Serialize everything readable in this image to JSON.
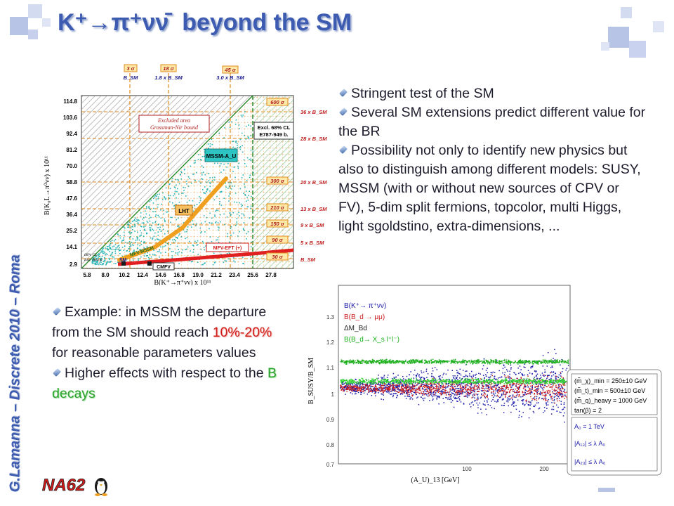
{
  "title": {
    "main": "K⁺→π⁺νν̄",
    "rest": "beyond the SM"
  },
  "side_label": "G.Lamanna – Discrete 2010 – Roma",
  "right_bullets": [
    "Stringent test of the SM",
    "Several SM extensions predict different value for the BR",
    "Possibility not only to identify new physics but also to distinguish among different models: SUSY, MSSM (with or without new sources of CPV or FV), 5-dim split fermions, topcolor, multi Higgs, light sgoldstino, extra-dimensions, ..."
  ],
  "left_bullets": {
    "b1_pre": "Example: in MSSM the departure from the SM should reach",
    "b1_hl": "10%-20%",
    "b1_post": "for reasonable parameters values",
    "b2_pre": "Higher effects with respect to the",
    "b2_hl": "B decays"
  },
  "logo": "NA62",
  "colors": {
    "title_blue": "#3d5bb0",
    "highlight_red": "#d0201a",
    "highlight_green": "#2aa22a",
    "square_blue": "#b8c4e6"
  },
  "plot1": {
    "ylabel": "B(K₀L→π⁰νν) x 10¹¹",
    "xlabel": "B(K⁺→π⁺νν) x 10¹¹",
    "y_ticks": [
      "114.8",
      "103.6",
      "92.4",
      "81.2",
      "70.0",
      "58.8",
      "47.6",
      "36.4",
      "25.2",
      "14.1",
      "2.9"
    ],
    "x_ticks": [
      "5.8",
      "8.0",
      "10.2",
      "12.4",
      "14.6",
      "16.8",
      "19.0",
      "21.2",
      "23.4",
      "25.6",
      "27.8"
    ],
    "top_labels": [
      {
        "sigma": "3 σ",
        "bsm": "B_SM"
      },
      {
        "sigma": "18 σ",
        "bsm": "1.8 x B_SM"
      },
      {
        "sigma": "45 σ",
        "bsm": "3.0 x B_SM"
      }
    ],
    "right_labels": [
      {
        "sigma": "600 σ",
        "bsm": "36 x B_SM"
      },
      {
        "sigma": "",
        "bsm": "28 x B_SM"
      },
      {
        "sigma": "300 σ",
        "bsm": "20 x B_SM"
      },
      {
        "sigma": "210 σ",
        "bsm": "13 x B_SM"
      },
      {
        "sigma": "150 σ",
        "bsm": "9 x B_SM"
      },
      {
        "sigma": "90 σ",
        "bsm": "5 x B_SM"
      },
      {
        "sigma": "30 σ",
        "bsm": "B_SM"
      }
    ],
    "excluded_area": [
      "Excluded area",
      "Grossman-Nir bound"
    ],
    "excl_box": [
      "Excl. 68% CL",
      "E787-949 b."
    ],
    "models": [
      "MSSM-A_U",
      "LHT",
      "MFV-EFT (+)",
      "SM",
      "MFV-MSSM",
      "CMFV"
    ],
    "corner_note": [
      "68% CL",
      "Exp. Bound"
    ]
  },
  "plot2": {
    "ylabel": "B_SUSY/B_SM",
    "xlabel": "(A_U)_13 [GeV]",
    "y_ticks": [
      "1.3",
      "1.2",
      "1.1",
      "1",
      "0.9",
      "0.8",
      "0.7"
    ],
    "x_ticks": [
      "100",
      "200"
    ],
    "legend": [
      {
        "label": "B(K⁺→ π⁺νν)",
        "color": "#1a1aa8"
      },
      {
        "label": "B(B_d → μμ)",
        "color": "#d02020"
      },
      {
        "label": "ΔM_Bd",
        "color": "#1a1a1a"
      },
      {
        "label": "B(B_d→ X_s l⁺l⁻)",
        "color": "#20b020"
      }
    ],
    "params_box": [
      "(m̃_χ)_min = 250±10 GeV",
      "(m̃_t)_min = 500±10 GeV",
      "(m̃_q)_heavy = 1000 GeV",
      "tan(β) = 2",
      "A₀ = 1 TeV",
      "|A₁₃| ≤  λ A₀",
      "|A₂₃| ≤ λ A₀"
    ]
  }
}
